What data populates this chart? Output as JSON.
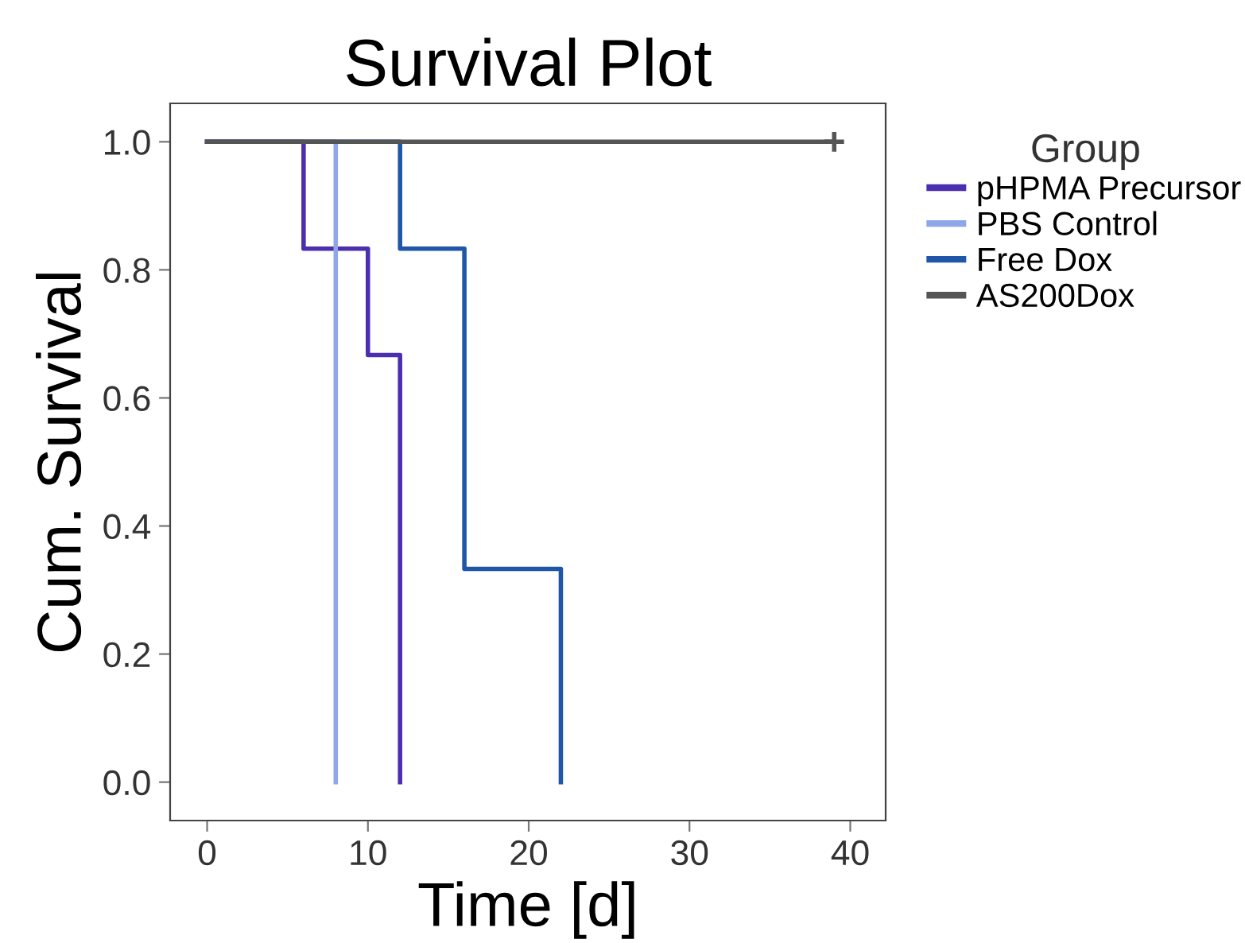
{
  "chart_data": {
    "type": "step",
    "title": "Survival Plot",
    "xlabel": "Time [d]",
    "ylabel": "Cum. Survival",
    "legend_title": "Group",
    "legend": "right",
    "grid": false,
    "xlim": [
      -2.3,
      42.2
    ],
    "ylim": [
      -0.06,
      1.06
    ],
    "xticks": [
      0,
      10,
      20,
      30,
      40
    ],
    "yticks": [
      {
        "value": 0,
        "label": "0.0"
      },
      {
        "value": 0.2,
        "label": "0.2"
      },
      {
        "value": 0.4,
        "label": "0.4"
      },
      {
        "value": 0.6,
        "label": "0.6"
      },
      {
        "value": 0.8,
        "label": "0.8"
      },
      {
        "value": 1,
        "label": "1.0"
      }
    ],
    "series": [
      {
        "name": "pHPMA Precursor",
        "color": "#4b2fb0",
        "x": [
          0,
          6,
          10,
          12
        ],
        "values": [
          1,
          0.833,
          0.667,
          0
        ]
      },
      {
        "name": "PBS Control",
        "color": "#8fa6e8",
        "x": [
          0,
          8
        ],
        "values": [
          1,
          0
        ]
      },
      {
        "name": "Free Dox",
        "color": "#1f56a8",
        "x": [
          0,
          12,
          16,
          22
        ],
        "values": [
          1,
          0.833,
          0.333,
          0
        ]
      },
      {
        "name": "AS200Dox",
        "color": "#555555",
        "x": [
          0,
          39
        ],
        "values": [
          1,
          1
        ]
      },
      {
        "type": "scatter",
        "color": "#555555",
        "marker": "cross",
        "x": [
          39
        ],
        "values": [
          1
        ]
      }
    ]
  }
}
